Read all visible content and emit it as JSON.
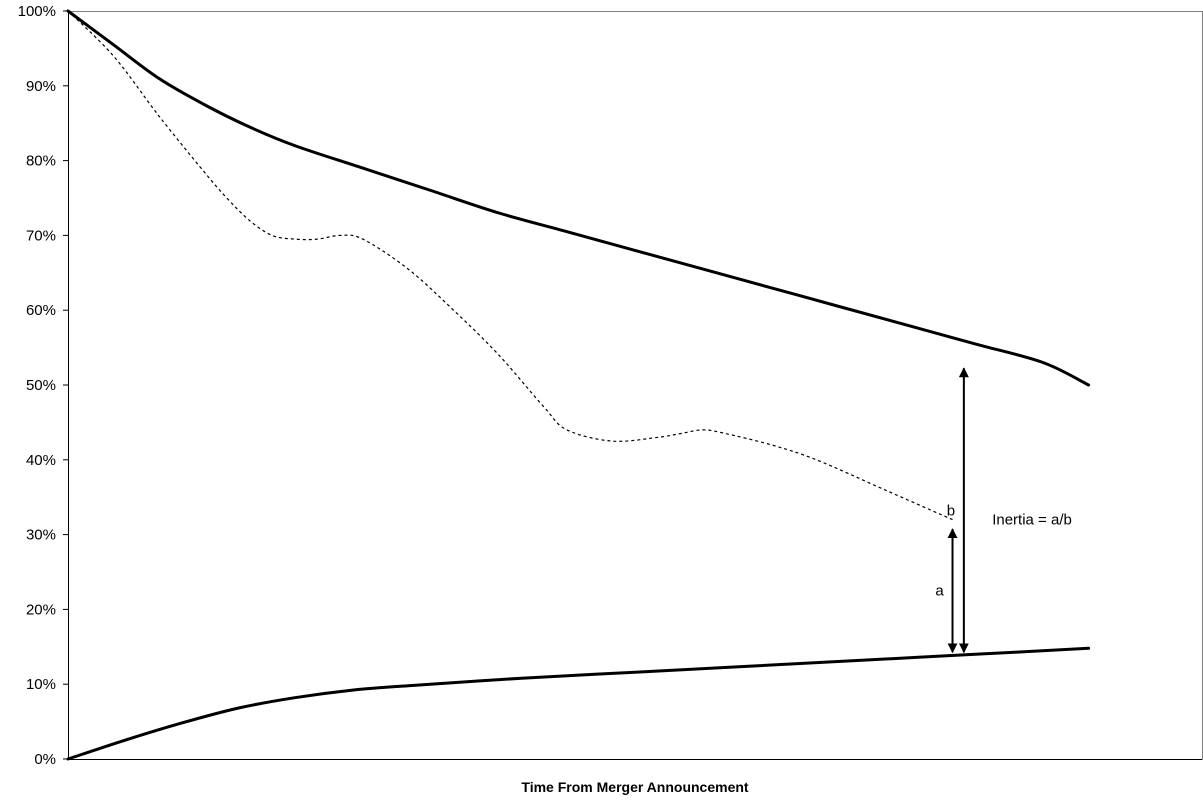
{
  "chart_data": {
    "type": "line",
    "title": "",
    "xlabel": "Time From Merger Announcement",
    "ylabel": "",
    "ylim": [
      0,
      100
    ],
    "y_ticks": [
      "0%",
      "10%",
      "20%",
      "30%",
      "40%",
      "50%",
      "60%",
      "70%",
      "80%",
      "90%",
      "100%"
    ],
    "x_range": [
      0,
      100
    ],
    "grid": false,
    "legend": "none",
    "series": [
      {
        "style": "solid",
        "x": [
          0,
          4,
          8,
          12,
          16,
          20,
          26,
          32,
          38,
          44,
          50,
          56,
          62,
          68,
          74,
          80,
          86,
          90
        ],
        "values": [
          100,
          95.5,
          91,
          87.5,
          84.5,
          82,
          79,
          76,
          73,
          70.5,
          68,
          65.5,
          63,
          60.5,
          58,
          55.5,
          53,
          50
        ]
      },
      {
        "style": "dotted",
        "x": [
          0,
          4,
          8,
          12,
          14,
          16,
          18,
          20,
          22,
          24,
          26,
          30,
          34,
          38,
          42,
          44,
          48,
          52,
          54,
          56,
          58,
          62,
          66,
          72,
          78
        ],
        "values": [
          100,
          94,
          86,
          78.5,
          75,
          72,
          70,
          69.5,
          69.5,
          70,
          69.5,
          65.5,
          60,
          54,
          47,
          44,
          42.5,
          43,
          43.5,
          44,
          43.5,
          42,
          40,
          36,
          32
        ]
      },
      {
        "style": "solid",
        "x": [
          0,
          5,
          10,
          15,
          20,
          25,
          30,
          40,
          50,
          60,
          70,
          80,
          90
        ],
        "values": [
          0,
          2.5,
          4.8,
          6.8,
          8.2,
          9.2,
          9.8,
          10.8,
          11.6,
          12.4,
          13.2,
          14,
          14.8
        ]
      }
    ],
    "annotations": [
      {
        "label": "a",
        "x": 78,
        "from": 14,
        "to": 31
      },
      {
        "label": "b",
        "x": 79,
        "from": 14,
        "to": 52.5
      },
      {
        "label": "Inertia = a/b",
        "x": 81.5,
        "y": 32
      }
    ]
  }
}
